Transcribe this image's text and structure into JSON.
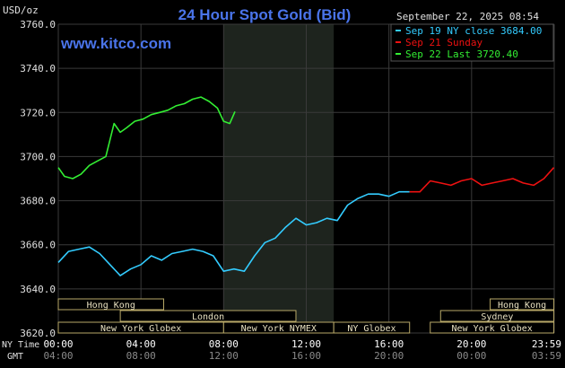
{
  "chart_data": {
    "type": "line",
    "title": "24 Hour Spot Gold (Bid)",
    "watermark": "www.kitco.com",
    "timestamp": "September 22, 2025 08:54",
    "ylabel": "USD/oz",
    "ylim": [
      3620,
      3760
    ],
    "y_ticks": [
      "3760.0",
      "3740.0",
      "3720.0",
      "3700.0",
      "3680.0",
      "3660.0",
      "3640.0",
      "3620.0"
    ],
    "x_row_labels": {
      "ny": "NY Time",
      "gmt": "GMT"
    },
    "x_ticks_ny": [
      "00:00",
      "04:00",
      "08:00",
      "12:00",
      "16:00",
      "20:00",
      "23:59"
    ],
    "x_ticks_gmt": [
      "04:00",
      "08:00",
      "12:00",
      "16:00",
      "20:00",
      "00:00",
      "03:59"
    ],
    "grid": true,
    "legend": [
      {
        "label": "Sep 19 NY close 3684.00",
        "color": "#33ccff"
      },
      {
        "label": "Sep 21 Sunday",
        "color": "#ee1111"
      },
      {
        "label": "Sep 22 Last 3720.40",
        "color": "#33ee33"
      }
    ],
    "legend_position": "top-right",
    "highlight_session_hours": [
      8,
      13.33
    ],
    "series": [
      {
        "name": "Sep 19 NY close 3684.00",
        "color": "#33ccff",
        "x_hours": [
          0,
          0.5,
          1,
          1.5,
          2,
          2.5,
          3,
          3.5,
          4,
          4.5,
          5,
          5.5,
          6,
          6.5,
          7,
          7.5,
          8,
          8.5,
          9,
          9.5,
          10,
          10.5,
          11,
          11.5,
          12,
          12.5,
          13,
          13.5,
          14,
          14.5,
          15,
          15.5,
          16,
          16.5,
          17
        ],
        "values": [
          3652,
          3657,
          3658,
          3659,
          3656,
          3651,
          3646,
          3649,
          3651,
          3655,
          3653,
          3656,
          3657,
          3658,
          3657,
          3655,
          3648,
          3649,
          3648,
          3655,
          3661,
          3663,
          3668,
          3672,
          3669,
          3670,
          3672,
          3671,
          3678,
          3681,
          3683,
          3683,
          3682,
          3684,
          3684
        ]
      },
      {
        "name": "Sep 21 Sunday",
        "color": "#ee1111",
        "x_hours": [
          17,
          17.5,
          18,
          18.5,
          19,
          19.5,
          20,
          20.5,
          21,
          21.5,
          22,
          22.5,
          23,
          23.5,
          23.98
        ],
        "values": [
          3684,
          3684,
          3689,
          3688,
          3687,
          3689,
          3690,
          3687,
          3688,
          3689,
          3690,
          3688,
          3687,
          3690,
          3695
        ]
      },
      {
        "name": "Sep 22 Last 3720.40",
        "color": "#33ee33",
        "x_hours": [
          0,
          0.3,
          0.7,
          1.1,
          1.5,
          1.9,
          2.3,
          2.7,
          3.0,
          3.3,
          3.7,
          4.1,
          4.5,
          4.9,
          5.3,
          5.7,
          6.1,
          6.5,
          6.9,
          7.3,
          7.7,
          8.0,
          8.3,
          8.55
        ],
        "values": [
          3695,
          3691,
          3690,
          3692,
          3696,
          3698,
          3700,
          3715,
          3711,
          3713,
          3716,
          3717,
          3719,
          3720,
          3721,
          3723,
          3724,
          3726,
          3727,
          3725,
          3722,
          3716,
          3715,
          3720.4
        ]
      }
    ],
    "sessions": [
      {
        "label": "Hong Kong",
        "start": 0,
        "end": 5.1,
        "row": 0
      },
      {
        "label": "London",
        "start": 3.0,
        "end": 11.5,
        "row": 1
      },
      {
        "label": "New York Globex",
        "start": 0,
        "end": 8.0,
        "row": 2
      },
      {
        "label": "New York NYMEX",
        "start": 8.0,
        "end": 13.33,
        "row": 2
      },
      {
        "label": "NY Globex",
        "start": 13.33,
        "end": 17.0,
        "row": 2
      },
      {
        "label": "Hong Kong",
        "start": 20.9,
        "end": 23.98,
        "row": 0
      },
      {
        "label": "Sydney",
        "start": 18.5,
        "end": 23.98,
        "row": 1
      },
      {
        "label": "New York Globex",
        "start": 18.0,
        "end": 23.98,
        "row": 2
      }
    ]
  }
}
